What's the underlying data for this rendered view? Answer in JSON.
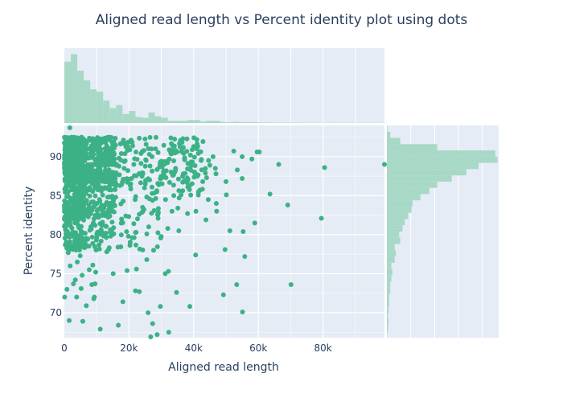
{
  "chart_data": {
    "type": "scatter",
    "title": "Aligned read length vs Percent identity plot using dots",
    "xlabel": "Aligned read length",
    "ylabel": "Percent identity",
    "xlim": [
      0,
      99000
    ],
    "ylim": [
      66.8,
      94.0
    ],
    "x_ticks": [
      {
        "value": 0,
        "label": "0"
      },
      {
        "value": 20000,
        "label": "20k"
      },
      {
        "value": 40000,
        "label": "40k"
      },
      {
        "value": 60000,
        "label": "60k"
      },
      {
        "value": 80000,
        "label": "80k"
      }
    ],
    "y_ticks": [
      {
        "value": 70,
        "label": "70"
      },
      {
        "value": 75,
        "label": "75"
      },
      {
        "value": 80,
        "label": "80"
      },
      {
        "value": 85,
        "label": "85"
      },
      {
        "value": 90,
        "label": "90"
      }
    ],
    "grid": true,
    "point_color": "#3cb186",
    "bar_color": "#a8d8c6",
    "plot_background": "#e5ecf6",
    "marginal_x_hist": {
      "bin_width": 2000,
      "heights": [
        0.82,
        0.92,
        0.7,
        0.57,
        0.45,
        0.42,
        0.3,
        0.2,
        0.24,
        0.12,
        0.16,
        0.08,
        0.07,
        0.14,
        0.09,
        0.07,
        0.03,
        0.03,
        0.03,
        0.04,
        0.04,
        0.02,
        0.03,
        0.03,
        0.015,
        0.01,
        0.015,
        0.01,
        0.01,
        0.01,
        0.006,
        0.006,
        0.004,
        0.004,
        0.004,
        0.004,
        0.003,
        0.003,
        0.003,
        0.002,
        0.002,
        0.003,
        0.002,
        0.002,
        0.002,
        0.002,
        0.002,
        0.002,
        0.002,
        0.002
      ]
    },
    "marginal_y_hist": {
      "bin_width": 0.8,
      "start": 66.8,
      "heights": [
        0.003,
        0.01,
        0.015,
        0.01,
        0.015,
        0.02,
        0.02,
        0.03,
        0.03,
        0.04,
        0.05,
        0.04,
        0.07,
        0.08,
        0.07,
        0.12,
        0.11,
        0.14,
        0.16,
        0.19,
        0.22,
        0.23,
        0.3,
        0.38,
        0.45,
        0.58,
        0.71,
        0.82,
        0.99,
        0.97,
        0.45,
        0.12,
        0.03,
        0.005
      ]
    },
    "points": [
      [
        66300,
        89.0
      ],
      [
        99000,
        89.0
      ],
      [
        80500,
        88.6
      ],
      [
        79500,
        82.1
      ],
      [
        70100,
        73.6
      ],
      [
        69100,
        83.8
      ],
      [
        63600,
        85.2
      ],
      [
        60300,
        90.6
      ],
      [
        59600,
        90.6
      ],
      [
        58900,
        81.5
      ],
      [
        58000,
        89.7
      ],
      [
        55800,
        77.2
      ],
      [
        55300,
        80.4
      ],
      [
        55000,
        87.2
      ],
      [
        55000,
        90.0
      ],
      [
        53300,
        73.6
      ],
      [
        53500,
        88.3
      ],
      [
        52400,
        90.7
      ],
      [
        51200,
        80.5
      ],
      [
        49700,
        78.1
      ],
      [
        50000,
        86.8
      ],
      [
        50100,
        85.1
      ],
      [
        49200,
        72.3
      ],
      [
        55100,
        70.1
      ],
      [
        47000,
        84.0
      ],
      [
        47100,
        83.0
      ],
      [
        46900,
        87.8
      ],
      [
        46700,
        88.5
      ],
      [
        44600,
        89.5
      ],
      [
        46000,
        90.0
      ],
      [
        45000,
        88.9
      ],
      [
        44000,
        87.3
      ],
      [
        44500,
        84.5
      ],
      [
        43800,
        81.9
      ],
      [
        42300,
        89.5
      ],
      [
        42800,
        86.8
      ],
      [
        41900,
        85.7
      ],
      [
        41100,
        87.5
      ],
      [
        40300,
        88.0
      ],
      [
        40700,
        83.0
      ],
      [
        40600,
        77.4
      ],
      [
        40000,
        91.3
      ],
      [
        41000,
        91.0
      ],
      [
        39000,
        90.2
      ],
      [
        38200,
        86.1
      ],
      [
        38100,
        82.7
      ],
      [
        38800,
        70.8
      ],
      [
        37200,
        89.6
      ],
      [
        36800,
        87.8
      ],
      [
        36100,
        85.1
      ],
      [
        35500,
        84.7
      ],
      [
        35400,
        80.5
      ],
      [
        34700,
        72.6
      ],
      [
        35100,
        83.4
      ],
      [
        34400,
        88.5
      ],
      [
        33500,
        87.8
      ],
      [
        33300,
        83.0
      ],
      [
        32200,
        75.3
      ],
      [
        32000,
        80.8
      ],
      [
        32300,
        67.5
      ],
      [
        31300,
        84.5
      ],
      [
        31200,
        75.0
      ],
      [
        30700,
        88.2
      ],
      [
        30000,
        89.4
      ],
      [
        29700,
        70.8
      ],
      [
        29200,
        86.4
      ],
      [
        29000,
        82.1
      ],
      [
        28600,
        85.5
      ],
      [
        28200,
        91.0
      ],
      [
        27600,
        78.0
      ],
      [
        27300,
        68.6
      ],
      [
        26500,
        88.8
      ],
      [
        26300,
        84.6
      ],
      [
        26100,
        81.0
      ],
      [
        25900,
        70.0
      ],
      [
        25500,
        76.8
      ],
      [
        25300,
        89.5
      ],
      [
        24800,
        86.0
      ],
      [
        24200,
        83.5
      ],
      [
        23700,
        90.4
      ],
      [
        23200,
        72.7
      ],
      [
        22300,
        75.6
      ],
      [
        22000,
        72.8
      ],
      [
        22200,
        80.3
      ],
      [
        21900,
        84.5
      ],
      [
        21500,
        89.0
      ],
      [
        20800,
        87.2
      ],
      [
        20400,
        86.3
      ],
      [
        19800,
        79.8
      ],
      [
        19400,
        75.4
      ],
      [
        19000,
        82.4
      ],
      [
        18500,
        88.5
      ],
      [
        18200,
        84.3
      ],
      [
        18100,
        71.4
      ],
      [
        17700,
        82.0
      ],
      [
        17200,
        86.3
      ],
      [
        16900,
        89.8
      ],
      [
        16600,
        78.4
      ],
      [
        16700,
        68.4
      ],
      [
        15700,
        87.1
      ],
      [
        15300,
        80.1
      ],
      [
        15100,
        75.0
      ],
      [
        14500,
        83.0
      ],
      [
        14300,
        86.5
      ],
      [
        13800,
        89.7
      ],
      [
        13400,
        84.8
      ],
      [
        13100,
        77.8
      ],
      [
        11100,
        67.9
      ],
      [
        11800,
        81.6
      ],
      [
        11500,
        86.0
      ],
      [
        11000,
        88.7
      ],
      [
        10800,
        91.5
      ],
      [
        10300,
        83.2
      ],
      [
        9900,
        79.3
      ],
      [
        9700,
        75.2
      ],
      [
        9500,
        73.7
      ],
      [
        9300,
        72.0
      ],
      [
        9100,
        71.8
      ],
      [
        8800,
        76.1
      ],
      [
        8500,
        73.6
      ],
      [
        8200,
        81.0
      ],
      [
        7700,
        75.5
      ],
      [
        7300,
        85.7
      ],
      [
        6900,
        78.6
      ],
      [
        6800,
        70.9
      ],
      [
        6200,
        79.4
      ],
      [
        5700,
        68.9
      ],
      [
        5500,
        74.8
      ],
      [
        5200,
        73.1
      ],
      [
        4900,
        77.3
      ],
      [
        4300,
        81.2
      ],
      [
        4000,
        76.5
      ],
      [
        3800,
        72.0
      ],
      [
        3400,
        74.2
      ],
      [
        3100,
        84.4
      ],
      [
        2800,
        73.7
      ],
      [
        2500,
        79.8
      ],
      [
        2200,
        82.6
      ],
      [
        1800,
        76.0
      ],
      [
        1500,
        69.0
      ],
      [
        1200,
        77.7
      ],
      [
        800,
        73.0
      ],
      [
        600,
        80.1
      ],
      [
        400,
        84.0
      ],
      [
        300,
        91.8
      ],
      [
        1700,
        93.7
      ],
      [
        26700,
        66.9
      ],
      [
        28700,
        67.2
      ],
      [
        100,
        88.0
      ],
      [
        100,
        72.0
      ]
    ]
  }
}
